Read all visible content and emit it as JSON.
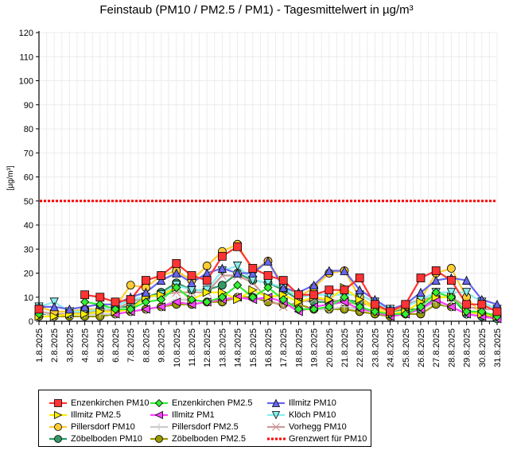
{
  "chart_data": {
    "type": "line",
    "title": "Feinstaub (PM10 / PM2.5 / PM1) -  Tagesmittelwert in µg/m³",
    "xlabel": "",
    "ylabel": "[µg/m³]",
    "ylim": [
      0,
      120
    ],
    "yticks": [
      "0",
      "10",
      "20",
      "30",
      "40",
      "50",
      "60",
      "70",
      "80",
      "90",
      "100",
      "110",
      "120"
    ],
    "grid": true,
    "legend_position": "bottom",
    "x": [
      "1.8.2025",
      "2.8.2025",
      "3.8.2025",
      "4.8.2025",
      "5.8.2025",
      "6.8.2025",
      "7.8.2025",
      "8.8.2025",
      "9.8.2025",
      "10.8.2025",
      "11.8.2025",
      "12.8.2025",
      "13.8.2025",
      "14.8.2025",
      "15.8.2025",
      "16.8.2025",
      "17.8.2025",
      "18.8.2025",
      "19.8.2025",
      "20.8.2025",
      "21.8.2025",
      "22.8.2025",
      "23.8.2025",
      "24.8.2025",
      "25.8.2025",
      "26.8.2025",
      "27.8.2025",
      "28.8.2025",
      "29.8.2025",
      "30.8.2025",
      "31.8.2025"
    ],
    "threshold": {
      "name": "Grenzwert für PM10",
      "value": 50,
      "color": "#ff0000"
    },
    "series": [
      {
        "name": "Enzenkirchen PM10",
        "color": "#ff3333",
        "marker": "square",
        "fill": "#ff3333",
        "values": [
          5,
          null,
          null,
          11,
          10,
          8,
          9,
          17,
          19,
          24,
          19,
          17,
          27,
          31,
          22,
          19,
          17,
          11,
          11,
          13,
          13,
          18,
          7,
          4,
          7,
          18,
          21,
          17,
          7,
          7,
          4
        ]
      },
      {
        "name": "Enzenkirchen PM2.5",
        "color": "#33ee33",
        "marker": "diamond",
        "fill": "#33ee33",
        "values": [
          3,
          null,
          null,
          8,
          7,
          5,
          5,
          8,
          9,
          14,
          9,
          8,
          10,
          15,
          10,
          14,
          9,
          5,
          5,
          6,
          10,
          6,
          4,
          3,
          3,
          6,
          12,
          10,
          4,
          4,
          2
        ]
      },
      {
        "name": "Illmitz PM10",
        "color": "#6666ee",
        "marker": "triangle-up",
        "fill": "#6666ee",
        "values": [
          6,
          6,
          5,
          6,
          7,
          7,
          10,
          12,
          17,
          20,
          16,
          20,
          22,
          20,
          20,
          25,
          14,
          12,
          15,
          21,
          21,
          13,
          9,
          5,
          7,
          12,
          17,
          18,
          17,
          9,
          7
        ]
      },
      {
        "name": "Illmitz PM2.5",
        "color": "#ffee00",
        "marker": "triangle-right",
        "fill": "#ffee00",
        "values": [
          2,
          2,
          3,
          3,
          4,
          4,
          5,
          10,
          11,
          14,
          9,
          12,
          12,
          9,
          13,
          10,
          11,
          8,
          10,
          9,
          14,
          9,
          5,
          3,
          4,
          8,
          10,
          10,
          4,
          3,
          2
        ]
      },
      {
        "name": "Illmitz PM1",
        "color": "#ff44ff",
        "marker": "triangle-left",
        "fill": "#ff44ff",
        "values": [
          null,
          null,
          null,
          null,
          null,
          3,
          4,
          5,
          6,
          8,
          7,
          8,
          9,
          10,
          9,
          10,
          8,
          4,
          6,
          7,
          8,
          5,
          4,
          2,
          3,
          5,
          9,
          6,
          3,
          2,
          1
        ]
      },
      {
        "name": "Klöch PM10",
        "color": "#88eeee",
        "marker": "triangle-down",
        "fill": "#88eeee",
        "values": [
          6,
          8,
          4,
          4,
          5,
          6,
          9,
          10,
          11,
          15,
          13,
          13,
          21,
          23,
          17,
          16,
          14,
          10,
          11,
          11,
          11,
          11,
          8,
          5,
          6,
          9,
          12,
          12,
          12,
          8,
          5
        ]
      },
      {
        "name": "Pillersdorf PM10",
        "color": "#ffcc33",
        "marker": "circle",
        "fill": "#ffcc33",
        "values": [
          6,
          4,
          4,
          5,
          5,
          6,
          15,
          14,
          19,
          21,
          17,
          23,
          29,
          32,
          21,
          25,
          15,
          10,
          14,
          20,
          21,
          10,
          6,
          4,
          6,
          9,
          20,
          22,
          10,
          3,
          3
        ]
      },
      {
        "name": "Pillersdorf PM2.5",
        "color": "#cccccc",
        "marker": "plus",
        "fill": "#cccccc",
        "values": [
          4,
          2,
          3,
          3,
          3,
          3,
          4,
          5,
          6,
          9,
          9,
          8,
          9,
          10,
          9,
          10,
          8,
          5,
          5,
          5,
          6,
          5,
          4,
          3,
          3,
          5,
          8,
          6,
          3,
          3,
          2
        ]
      },
      {
        "name": "Vorhegg PM10",
        "color": "#cc9999",
        "marker": "x",
        "fill": "#cc9999",
        "values": [
          4,
          3,
          3,
          4,
          4,
          5,
          8,
          10,
          11,
          12,
          12,
          12,
          19,
          19,
          16,
          9,
          6,
          8,
          9,
          9,
          8,
          7,
          7,
          5,
          7,
          9,
          10,
          10,
          6,
          5,
          5
        ]
      },
      {
        "name": "Zöbelboden PM10",
        "color": "#339966",
        "marker": "circle",
        "fill": "#339966",
        "values": [
          3,
          3,
          3,
          4,
          5,
          6,
          6,
          10,
          12,
          16,
          13,
          13,
          15,
          20,
          17,
          16,
          13,
          9,
          8,
          8,
          9,
          8,
          6,
          4,
          5,
          5,
          10,
          10,
          3,
          2,
          1
        ]
      },
      {
        "name": "Zöbelboden PM2.5",
        "color": "#999900",
        "marker": "circle",
        "fill": "#999900",
        "values": [
          2,
          2,
          2,
          2,
          2,
          3,
          4,
          5,
          6,
          7,
          7,
          8,
          8,
          10,
          10,
          8,
          7,
          7,
          5,
          5,
          5,
          4,
          3,
          2,
          3,
          3,
          7,
          6,
          3,
          2,
          2
        ]
      }
    ]
  }
}
